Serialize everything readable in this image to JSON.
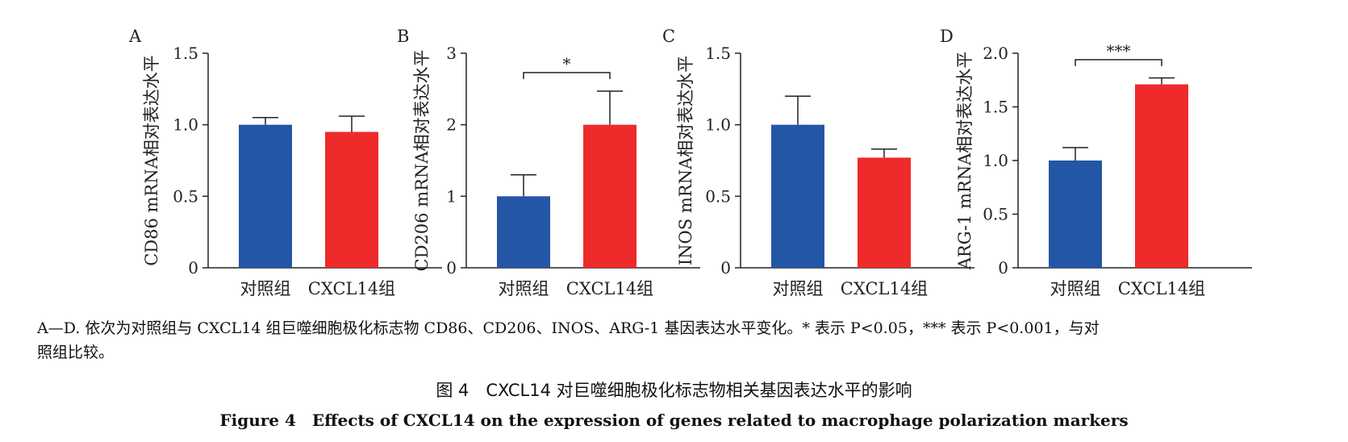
{
  "colors": {
    "control": "#2456a6",
    "treated": "#ee2a2a",
    "axis": "#222222"
  },
  "chart_data": [
    {
      "panel": "A",
      "type": "bar",
      "ylabel": "CD86 mRNA相对表达水平",
      "categories": [
        "对照组",
        "CXCL14组"
      ],
      "values": [
        1.0,
        0.95
      ],
      "errors": [
        0.05,
        0.11
      ],
      "ylim": [
        0,
        1.5
      ],
      "yticks": [
        "0",
        "0.5",
        "1.0",
        "1.5"
      ],
      "ytick_values": [
        0,
        0.5,
        1.0,
        1.5
      ],
      "significance": ""
    },
    {
      "panel": "B",
      "type": "bar",
      "ylabel": "CD206 mRNA相对表达水平",
      "categories": [
        "对照组",
        "CXCL14组"
      ],
      "values": [
        1.0,
        2.0
      ],
      "errors": [
        0.3,
        0.47
      ],
      "ylim": [
        0,
        3
      ],
      "yticks": [
        "0",
        "1",
        "2",
        "3"
      ],
      "ytick_values": [
        0,
        1,
        2,
        3
      ],
      "significance": "*",
      "bracket_level": 2.73
    },
    {
      "panel": "C",
      "type": "bar",
      "ylabel": "INOS mRNA相对表达水平",
      "categories": [
        "对照组",
        "CXCL14组"
      ],
      "values": [
        1.0,
        0.77
      ],
      "errors": [
        0.2,
        0.06
      ],
      "ylim": [
        0,
        1.5
      ],
      "yticks": [
        "0",
        "0.5",
        "1.0",
        "1.5"
      ],
      "ytick_values": [
        0,
        0.5,
        1.0,
        1.5
      ],
      "significance": ""
    },
    {
      "panel": "D",
      "type": "bar",
      "ylabel": "ARG-1 mRNA相对表达水平",
      "categories": [
        "对照组",
        "CXCL14组"
      ],
      "values": [
        1.0,
        1.71
      ],
      "errors": [
        0.12,
        0.06
      ],
      "ylim": [
        0,
        2.0
      ],
      "yticks": [
        "0",
        "0.5",
        "1.0",
        "1.5",
        "2.0"
      ],
      "ytick_values": [
        0,
        0.5,
        1.0,
        1.5,
        2.0
      ],
      "significance": "***",
      "bracket_level": 1.94
    }
  ],
  "caption": {
    "line1": "A—D. 依次为对照组与 CXCL14 组巨噬细胞极化标志物 CD86、CD206、INOS、ARG-1 基因表达水平变化。* 表示 P<0.05，*** 表示 P<0.001，与对",
    "line2": "照组比较。"
  },
  "figure_title_cn": "图 4　CXCL14 对巨噬细胞极化标志物相关基因表达水平的影响",
  "figure_title_en": "Figure 4　Effects of CXCL14 on the expression of genes related to macrophage polarization markers"
}
